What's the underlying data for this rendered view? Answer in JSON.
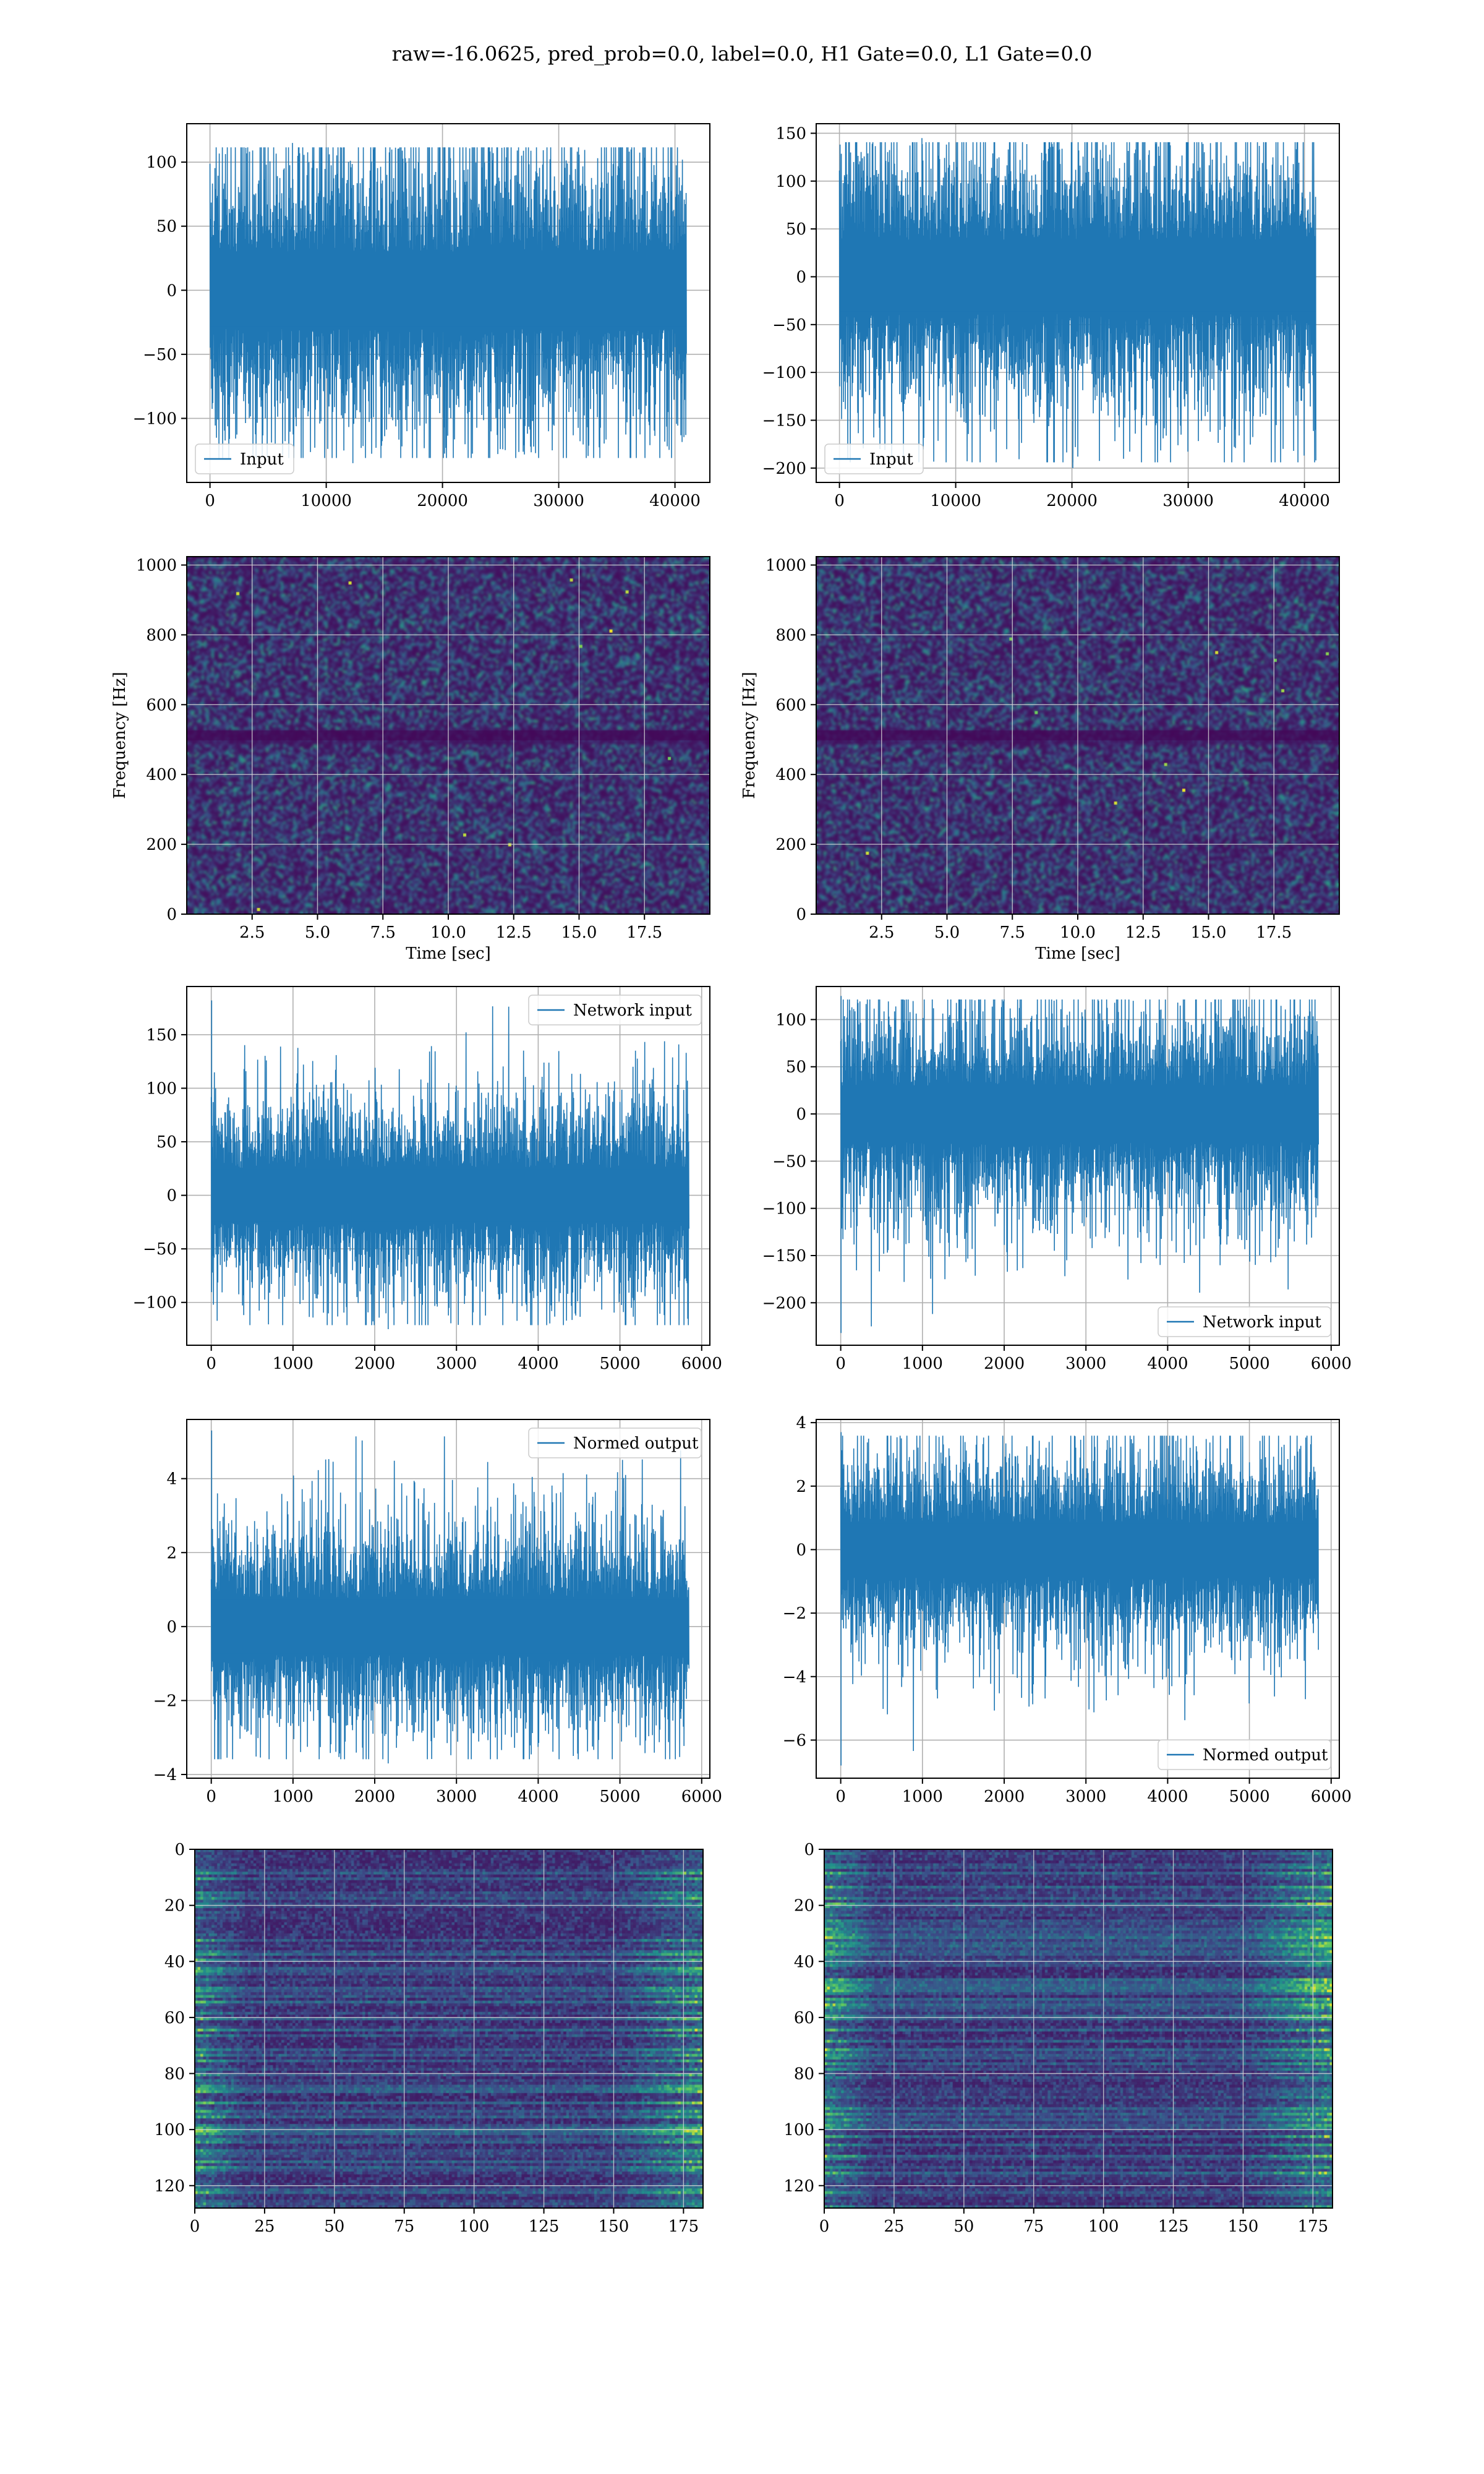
{
  "figure": {
    "title": "raw=-16.0625, pred_prob=0.0, label=0.0, H1 Gate=0.0, L1 Gate=0.0"
  },
  "colors": {
    "series": "#1f77b4",
    "grid": "#b0b0b0",
    "viridis_low": "#440154",
    "viridis_high": "#fde725"
  },
  "chart_data": [
    {
      "id": "input-h1",
      "type": "line",
      "title": "",
      "xlabel": "",
      "ylabel": "",
      "xlim": [
        -2000,
        43000
      ],
      "ylim": [
        -150,
        130
      ],
      "xticks": [
        0,
        10000,
        20000,
        30000,
        40000
      ],
      "yticks": [
        -100,
        -50,
        0,
        50,
        100
      ],
      "grid": true,
      "legend": "lower left",
      "series": [
        {
          "name": "Input",
          "n_points": 40960,
          "x_range": [
            0,
            40960
          ],
          "approx_band": [
            -70,
            70
          ],
          "y_min": -135,
          "y_max": 115
        }
      ]
    },
    {
      "id": "input-l1",
      "type": "line",
      "title": "",
      "xlabel": "",
      "ylabel": "",
      "xlim": [
        -2000,
        43000
      ],
      "ylim": [
        -215,
        160
      ],
      "xticks": [
        0,
        10000,
        20000,
        30000,
        40000
      ],
      "yticks": [
        -200,
        -150,
        -100,
        -50,
        0,
        50,
        100,
        150
      ],
      "grid": true,
      "legend": "lower left",
      "series": [
        {
          "name": "Input",
          "n_points": 40960,
          "x_range": [
            0,
            40960
          ],
          "approx_band": [
            -90,
            90
          ],
          "y_min": -200,
          "y_max": 145
        }
      ]
    },
    {
      "id": "spectrogram-h1",
      "type": "heatmap",
      "title": "",
      "xlabel": "Time [sec]",
      "ylabel": "Frequency [Hz]",
      "xlim": [
        0,
        20
      ],
      "ylim": [
        0,
        1024
      ],
      "xticks": [
        2.5,
        5.0,
        7.5,
        10.0,
        12.5,
        15.0,
        17.5
      ],
      "yticks": [
        0,
        200,
        400,
        600,
        800,
        1000
      ],
      "grid": true,
      "colormap": "viridis",
      "notes": "dark band near 512 Hz"
    },
    {
      "id": "spectrogram-l1",
      "type": "heatmap",
      "title": "",
      "xlabel": "Time [sec]",
      "ylabel": "Frequency [Hz]",
      "xlim": [
        0,
        20
      ],
      "ylim": [
        0,
        1024
      ],
      "xticks": [
        2.5,
        5.0,
        7.5,
        10.0,
        12.5,
        15.0,
        17.5
      ],
      "yticks": [
        0,
        200,
        400,
        600,
        800,
        1000
      ],
      "grid": true,
      "colormap": "viridis",
      "notes": "dark band near 512 Hz"
    },
    {
      "id": "network-input-h1",
      "type": "line",
      "title": "",
      "xlabel": "",
      "ylabel": "",
      "xlim": [
        -300,
        6100
      ],
      "ylim": [
        -140,
        195
      ],
      "xticks": [
        0,
        1000,
        2000,
        3000,
        4000,
        5000,
        6000
      ],
      "yticks": [
        -100,
        -50,
        0,
        50,
        100,
        150
      ],
      "grid": true,
      "legend": "upper right",
      "series": [
        {
          "name": "Network input",
          "n_points": 5840,
          "x_range": [
            0,
            5840
          ],
          "approx_band": [
            -60,
            60
          ],
          "y_min": -125,
          "y_max": 182
        }
      ]
    },
    {
      "id": "network-input-l1",
      "type": "line",
      "title": "",
      "xlabel": "",
      "ylabel": "",
      "xlim": [
        -300,
        6100
      ],
      "ylim": [
        -245,
        135
      ],
      "xticks": [
        0,
        1000,
        2000,
        3000,
        4000,
        5000,
        6000
      ],
      "yticks": [
        -200,
        -150,
        -100,
        -50,
        0,
        50,
        100
      ],
      "grid": true,
      "legend": "lower right",
      "series": [
        {
          "name": "Network input",
          "n_points": 5840,
          "x_range": [
            0,
            5840
          ],
          "approx_band": [
            -70,
            70
          ],
          "y_min": -232,
          "y_max": 125
        }
      ]
    },
    {
      "id": "normed-output-h1",
      "type": "line",
      "title": "",
      "xlabel": "",
      "ylabel": "",
      "xlim": [
        -300,
        6100
      ],
      "ylim": [
        -4.1,
        5.6
      ],
      "xticks": [
        0,
        1000,
        2000,
        3000,
        4000,
        5000,
        6000
      ],
      "yticks": [
        -4,
        -2,
        0,
        2,
        4
      ],
      "grid": true,
      "legend": "upper right",
      "series": [
        {
          "name": "Normed output",
          "n_points": 5840,
          "x_range": [
            0,
            5840
          ],
          "approx_band": [
            -1.8,
            1.8
          ],
          "y_min": -3.7,
          "y_max": 5.3
        }
      ]
    },
    {
      "id": "normed-output-l1",
      "type": "line",
      "title": "",
      "xlabel": "",
      "ylabel": "",
      "xlim": [
        -300,
        6100
      ],
      "ylim": [
        -7.2,
        4.1
      ],
      "xticks": [
        0,
        1000,
        2000,
        3000,
        4000,
        5000,
        6000
      ],
      "yticks": [
        -6,
        -4,
        -2,
        0,
        2,
        4
      ],
      "grid": true,
      "legend": "lower right",
      "series": [
        {
          "name": "Normed output",
          "n_points": 5840,
          "x_range": [
            0,
            5840
          ],
          "approx_band": [
            -2.0,
            2.0
          ],
          "y_min": -6.8,
          "y_max": 3.7
        }
      ]
    },
    {
      "id": "feature-map-h1",
      "type": "heatmap",
      "title": "",
      "xlabel": "",
      "ylabel": "",
      "xlim": [
        0,
        182
      ],
      "ylim": [
        128,
        0
      ],
      "xticks": [
        0,
        25,
        50,
        75,
        100,
        125,
        150,
        175
      ],
      "yticks": [
        0,
        20,
        40,
        60,
        80,
        100,
        120
      ],
      "grid": true,
      "colormap": "viridis",
      "shape": [
        128,
        182
      ]
    },
    {
      "id": "feature-map-l1",
      "type": "heatmap",
      "title": "",
      "xlabel": "",
      "ylabel": "",
      "xlim": [
        0,
        182
      ],
      "ylim": [
        128,
        0
      ],
      "xticks": [
        0,
        25,
        50,
        75,
        100,
        125,
        150,
        175
      ],
      "yticks": [
        0,
        20,
        40,
        60,
        80,
        100,
        120
      ],
      "grid": true,
      "colormap": "viridis",
      "shape": [
        128,
        182
      ]
    }
  ]
}
